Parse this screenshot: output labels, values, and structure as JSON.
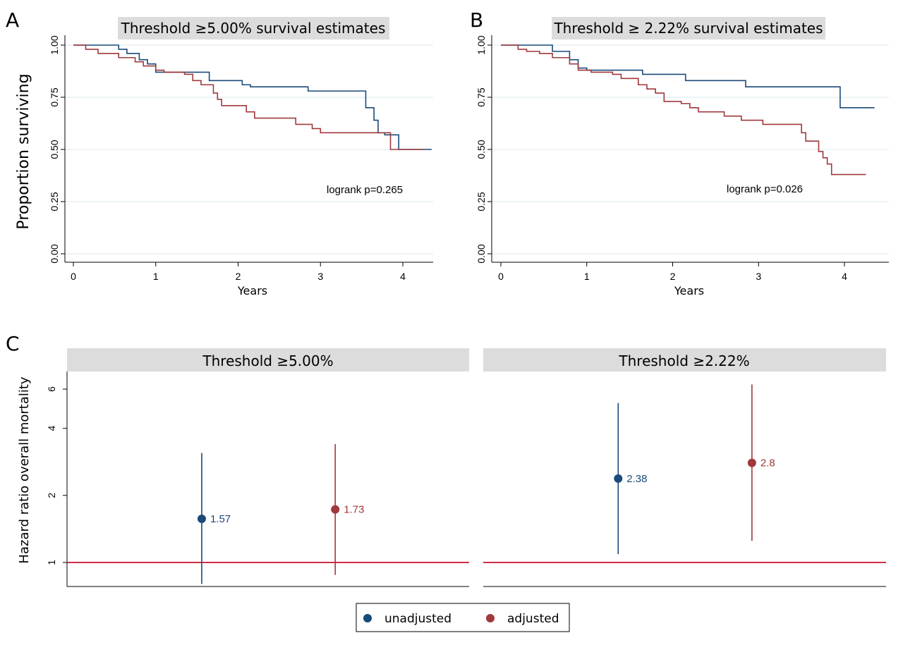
{
  "colors": {
    "blue": "#1a4a7a",
    "red": "#a0383c",
    "refline": "#c8102e",
    "grid": "#dbe7ec",
    "strip": "#dcdcdc"
  },
  "panel_letters": [
    "A",
    "B",
    "C"
  ],
  "chart_data": [
    {
      "type": "line",
      "panel": "A",
      "title": "Threshold ≥5.00% survival estimates",
      "ylabel": "Proportion surviving",
      "xlabel": "Years",
      "xlim": [
        0,
        4.35
      ],
      "ylim": [
        0,
        1
      ],
      "xticks": [
        "0",
        "1",
        "2",
        "3",
        "4"
      ],
      "yticks": [
        "0.00",
        "0.25",
        "0.50",
        "0.75",
        "1.00"
      ],
      "grid": true,
      "annotation": "logrank p=0.265",
      "series": [
        {
          "color": "blue",
          "step": true,
          "points": [
            [
              0,
              1
            ],
            [
              0.5,
              1
            ],
            [
              0.55,
              0.98
            ],
            [
              0.65,
              0.96
            ],
            [
              0.8,
              0.93
            ],
            [
              0.9,
              0.91
            ],
            [
              1.0,
              0.87
            ],
            [
              1.6,
              0.87
            ],
            [
              1.65,
              0.83
            ],
            [
              2.0,
              0.83
            ],
            [
              2.05,
              0.81
            ],
            [
              2.15,
              0.8
            ],
            [
              2.8,
              0.8
            ],
            [
              2.85,
              0.78
            ],
            [
              3.5,
              0.78
            ],
            [
              3.55,
              0.7
            ],
            [
              3.65,
              0.64
            ],
            [
              3.7,
              0.58
            ],
            [
              3.75,
              0.58
            ],
            [
              3.78,
              0.57
            ],
            [
              3.9,
              0.57
            ],
            [
              3.95,
              0.5
            ],
            [
              4.35,
              0.5
            ]
          ]
        },
        {
          "color": "red",
          "step": true,
          "points": [
            [
              0,
              1
            ],
            [
              0.15,
              0.98
            ],
            [
              0.3,
              0.96
            ],
            [
              0.55,
              0.94
            ],
            [
              0.75,
              0.92
            ],
            [
              0.85,
              0.9
            ],
            [
              1.0,
              0.88
            ],
            [
              1.1,
              0.87
            ],
            [
              1.35,
              0.86
            ],
            [
              1.45,
              0.83
            ],
            [
              1.55,
              0.81
            ],
            [
              1.7,
              0.77
            ],
            [
              1.75,
              0.74
            ],
            [
              1.8,
              0.71
            ],
            [
              2.1,
              0.68
            ],
            [
              2.2,
              0.65
            ],
            [
              2.7,
              0.62
            ],
            [
              2.9,
              0.6
            ],
            [
              3.0,
              0.58
            ],
            [
              3.4,
              0.58
            ],
            [
              3.5,
              0.58
            ],
            [
              3.8,
              0.58
            ],
            [
              3.85,
              0.5
            ],
            [
              4.25,
              0.5
            ]
          ]
        }
      ]
    },
    {
      "type": "line",
      "panel": "B",
      "title": "Threshold ≥ 2.22% survival estimates",
      "ylabel": "",
      "xlabel": "Years",
      "xlim": [
        0,
        4.35
      ],
      "ylim": [
        0,
        1
      ],
      "xticks": [
        "0",
        "1",
        "2",
        "3",
        "4"
      ],
      "yticks": [
        "0.00",
        "0.25",
        "0.50",
        "0.75",
        "1.00"
      ],
      "grid": true,
      "annotation": "logrank p=0.026",
      "series": [
        {
          "color": "blue",
          "step": true,
          "points": [
            [
              0,
              1
            ],
            [
              0.5,
              1
            ],
            [
              0.6,
              0.97
            ],
            [
              0.8,
              0.93
            ],
            [
              0.9,
              0.89
            ],
            [
              1.0,
              0.88
            ],
            [
              1.6,
              0.88
            ],
            [
              1.65,
              0.86
            ],
            [
              2.1,
              0.86
            ],
            [
              2.15,
              0.83
            ],
            [
              2.8,
              0.83
            ],
            [
              2.85,
              0.8
            ],
            [
              3.9,
              0.8
            ],
            [
              3.95,
              0.7
            ],
            [
              4.35,
              0.7
            ]
          ]
        },
        {
          "color": "red",
          "step": true,
          "points": [
            [
              0,
              1
            ],
            [
              0.2,
              0.98
            ],
            [
              0.3,
              0.97
            ],
            [
              0.45,
              0.96
            ],
            [
              0.6,
              0.94
            ],
            [
              0.8,
              0.91
            ],
            [
              0.9,
              0.88
            ],
            [
              1.05,
              0.87
            ],
            [
              1.3,
              0.86
            ],
            [
              1.4,
              0.84
            ],
            [
              1.6,
              0.81
            ],
            [
              1.7,
              0.79
            ],
            [
              1.8,
              0.77
            ],
            [
              1.9,
              0.73
            ],
            [
              2.1,
              0.72
            ],
            [
              2.2,
              0.7
            ],
            [
              2.3,
              0.68
            ],
            [
              2.6,
              0.66
            ],
            [
              2.8,
              0.64
            ],
            [
              3.05,
              0.62
            ],
            [
              3.5,
              0.58
            ],
            [
              3.55,
              0.54
            ],
            [
              3.7,
              0.49
            ],
            [
              3.75,
              0.46
            ],
            [
              3.8,
              0.43
            ],
            [
              3.85,
              0.38
            ],
            [
              4.25,
              0.38
            ]
          ]
        }
      ]
    },
    {
      "type": "scatter",
      "panel": "C",
      "ylabel": "Hazard ratio overall mortality",
      "ylim": [
        0.78,
        7.2
      ],
      "log_y": true,
      "yticks": [
        "1",
        "2",
        "4",
        "6"
      ],
      "reference_line": 1,
      "legend_position": "bottom",
      "legend": [
        {
          "label": "unadjusted",
          "color": "blue"
        },
        {
          "label": "adjusted",
          "color": "red"
        }
      ],
      "facets": [
        {
          "title": "Threshold ≥5.00%",
          "points": [
            {
              "group": "unadjusted",
              "color": "blue",
              "hr": 1.57,
              "lo": 0.8,
              "hi": 3.1,
              "label": "1.57"
            },
            {
              "group": "adjusted",
              "color": "red",
              "hr": 1.73,
              "lo": 0.88,
              "hi": 3.4,
              "label": "1.73"
            }
          ]
        },
        {
          "title": "Threshold ≥2.22%",
          "points": [
            {
              "group": "unadjusted",
              "color": "blue",
              "hr": 2.38,
              "lo": 1.09,
              "hi": 5.2,
              "label": "2.38"
            },
            {
              "group": "adjusted",
              "color": "red",
              "hr": 2.8,
              "lo": 1.25,
              "hi": 6.3,
              "label": "2.8"
            }
          ]
        }
      ]
    }
  ]
}
